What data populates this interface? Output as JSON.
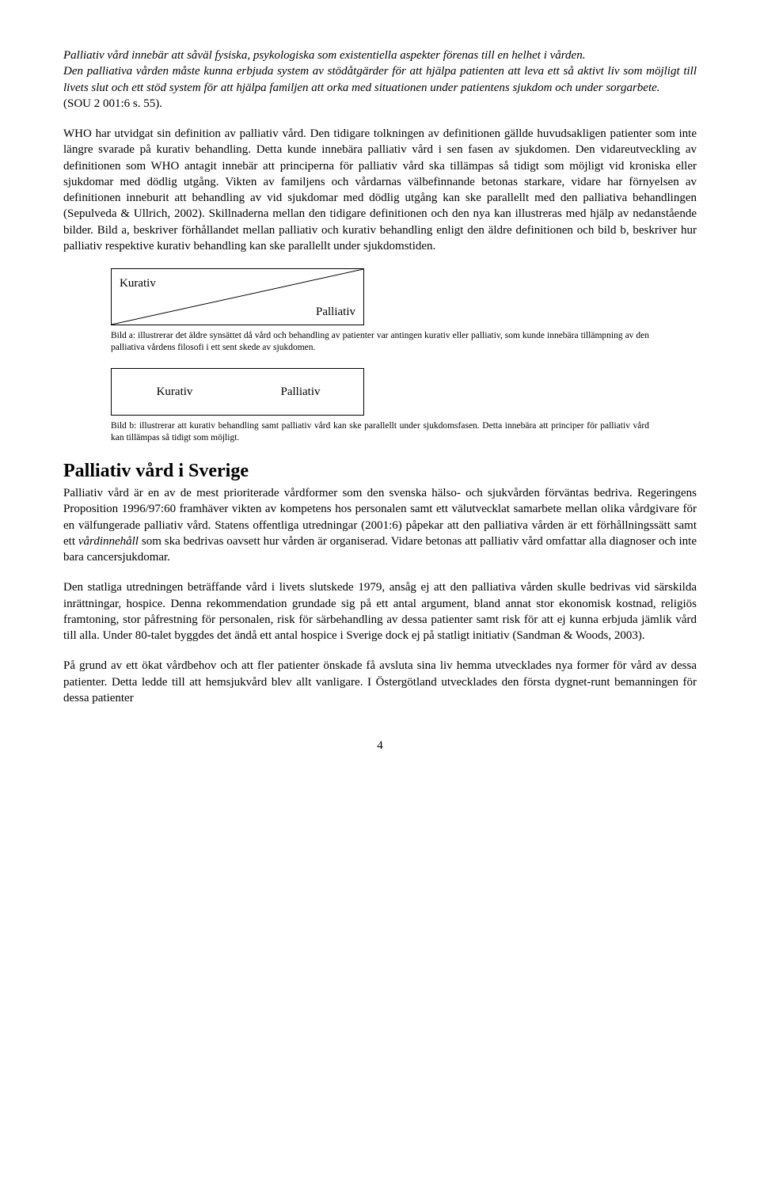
{
  "quote": {
    "p1": "Palliativ vård innebär att såväl fysiska, psykologiska som existentiella aspekter förenas till en helhet i vården.",
    "p2": "Den palliativa vården måste kunna erbjuda system av stödåtgärder för att hjälpa patienten att leva ett så aktivt liv som möjligt till livets slut och ett stöd system för att hjälpa familjen att orka med situationen under patientens sjukdom och under sorgarbete.",
    "cite": "(SOU 2 001:6 s. 55)."
  },
  "main_para": "WHO har utvidgat sin definition av palliativ vård. Den tidigare tolkningen av definitionen gällde huvudsakligen patienter som inte längre svarade på kurativ behandling. Detta kunde innebära palliativ vård i sen fasen av sjukdomen. Den vidareutveckling av definitionen som WHO antagit innebär att principerna för palliativ vård ska tillämpas så tidigt som möjligt vid kroniska eller sjukdomar med dödlig utgång. Vikten av familjens och vårdarnas välbefinnande betonas starkare, vidare har förnyelsen av definitionen inneburit att behandling av vid sjukdomar med dödlig utgång kan ske parallellt med den palliativa behandlingen (Sepulveda & Ullrich, 2002). Skillnaderna mellan den tidigare definitionen och den nya kan illustreras med hjälp av nedanstående bilder. Bild a, beskriver förhållandet mellan palliativ och kurativ behandling enligt den äldre definitionen och bild b, beskriver hur palliativ respektive kurativ behandling kan ske parallellt under sjukdomstiden.",
  "diagram_a": {
    "left": "Kurativ",
    "right": "Palliativ",
    "caption": "Bild a: illustrerar det äldre synsättet då vård och behandling av patienter var antingen kurativ eller palliativ, som kunde innebära tillämpning av den palliativa vårdens filosofi i ett sent skede av sjukdomen."
  },
  "diagram_b": {
    "left": "Kurativ",
    "right": "Palliativ",
    "caption": "Bild b: illustrerar att kurativ behandling samt palliativ vård kan ske parallellt under sjukdomsfasen. Detta innebära att principer för palliativ vård kan tillämpas så tidigt som möjligt."
  },
  "section": {
    "heading": "Palliativ vård i Sverige",
    "p1": "Palliativ vård är en av de mest prioriterade vårdformer som den svenska hälso- och sjukvården förväntas bedriva. Regeringens Proposition 1996/97:60 framhäver vikten av kompetens hos personalen samt ett välutvecklat samarbete mellan olika vårdgivare för en välfungerade palliativ vård. Statens offentliga utredningar (2001:6) påpekar att den palliativa vården är ett förhållningssätt samt ett vårdinnehåll som ska bedrivas oavsett hur vården är organiserad. Vidare betonas att palliativ vård omfattar alla diagnoser och inte bara cancersjukdomar.",
    "p2": "Den statliga utredningen beträffande vård i livets slutskede 1979, ansåg ej att den palliativa vården skulle bedrivas vid särskilda inrättningar, hospice. Denna rekommendation grundade sig på ett antal argument, bland annat stor ekonomisk kostnad, religiös framtoning, stor påfrestning för personalen, risk för särbehandling av dessa patienter samt risk för att ej kunna erbjuda jämlik vård till alla. Under 80-talet byggdes det ändå ett antal hospice i Sverige dock ej på statligt initiativ (Sandman & Woods, 2003).",
    "p3": "På grund av ett ökat vårdbehov och att fler patienter önskade få avsluta sina liv hemma utvecklades nya former för vård av dessa patienter. Detta ledde till att hemsjukvård blev allt vanligare. I Östergötland utvecklades den första dygnet-runt bemanningen för dessa patienter"
  },
  "page_number": "4"
}
